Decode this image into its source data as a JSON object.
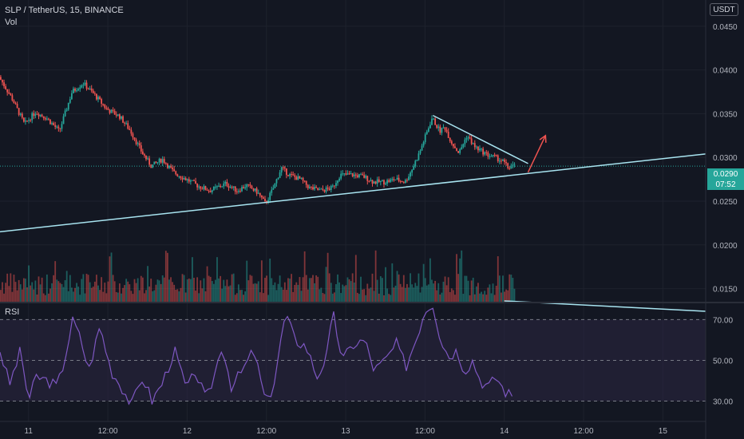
{
  "header": {
    "symbol_line": "SLP / TetherUS, 15, BINANCE",
    "vol_label": "Vol",
    "currency_button": "USDT",
    "rsi_label": "RSI"
  },
  "price_tag": {
    "price": "0.0290",
    "countdown": "07:52"
  },
  "colors": {
    "background": "#131722",
    "up": "#26a69a",
    "down": "#ef5350",
    "trendline": "#a8e4f0",
    "arrow": "#ef5350",
    "rsi_line": "#7e57c2",
    "rsi_band": "#2a2440"
  },
  "chart_data": [
    {
      "type": "candlestick",
      "title": "SLP / TetherUS, 15, BINANCE",
      "x_ticks": [
        "11",
        "12:00",
        "12",
        "12:00",
        "13",
        "12:00",
        "14",
        "12:00",
        "15"
      ],
      "y_ticks": [
        "0.0450",
        "0.0400",
        "0.0350",
        "0.0300",
        "0.0250",
        "0.0200",
        "0.0150"
      ],
      "ylim": [
        0.0135,
        0.048
      ],
      "xlim": [
        10.82,
        15.27
      ],
      "last_price": 0.029,
      "price_path": [
        [
          10.82,
          0.0392
        ],
        [
          10.9,
          0.0368
        ],
        [
          10.98,
          0.0338
        ],
        [
          11.05,
          0.0352
        ],
        [
          11.12,
          0.0345
        ],
        [
          11.2,
          0.033
        ],
        [
          11.28,
          0.0375
        ],
        [
          11.35,
          0.0385
        ],
        [
          11.42,
          0.0372
        ],
        [
          11.5,
          0.0355
        ],
        [
          11.58,
          0.0347
        ],
        [
          11.65,
          0.033
        ],
        [
          11.72,
          0.0306
        ],
        [
          11.78,
          0.029
        ],
        [
          11.85,
          0.0298
        ],
        [
          11.92,
          0.0283
        ],
        [
          12.0,
          0.0275
        ],
        [
          12.08,
          0.0267
        ],
        [
          12.15,
          0.0262
        ],
        [
          12.25,
          0.027
        ],
        [
          12.32,
          0.0262
        ],
        [
          12.38,
          0.0268
        ],
        [
          12.45,
          0.026
        ],
        [
          12.5,
          0.0247
        ],
        [
          12.55,
          0.0265
        ],
        [
          12.6,
          0.0288
        ],
        [
          12.65,
          0.028
        ],
        [
          12.72,
          0.0275
        ],
        [
          12.78,
          0.0265
        ],
        [
          12.85,
          0.0262
        ],
        [
          12.92,
          0.0265
        ],
        [
          12.97,
          0.028
        ],
        [
          13.05,
          0.028
        ],
        [
          13.12,
          0.0278
        ],
        [
          13.18,
          0.0272
        ],
        [
          13.25,
          0.0272
        ],
        [
          13.32,
          0.0275
        ],
        [
          13.38,
          0.0272
        ],
        [
          13.42,
          0.0285
        ],
        [
          13.47,
          0.0305
        ],
        [
          13.52,
          0.033
        ],
        [
          13.55,
          0.0345
        ],
        [
          13.6,
          0.033
        ],
        [
          13.63,
          0.0335
        ],
        [
          13.67,
          0.0318
        ],
        [
          13.72,
          0.0305
        ],
        [
          13.77,
          0.0325
        ],
        [
          13.82,
          0.0312
        ],
        [
          13.9,
          0.0303
        ],
        [
          13.95,
          0.03
        ],
        [
          14.0,
          0.0295
        ],
        [
          14.03,
          0.0288
        ],
        [
          14.06,
          0.029
        ]
      ],
      "trendlines": [
        {
          "name": "ascending-support",
          "points": [
            [
              10.82,
              0.0215
            ],
            [
              15.27,
              0.0304
            ]
          ]
        },
        {
          "name": "descending-resistance",
          "points": [
            [
              13.55,
              0.0348
            ],
            [
              14.15,
              0.0293
            ]
          ]
        }
      ],
      "arrow": {
        "from": [
          14.15,
          0.0283
        ],
        "to": [
          14.26,
          0.0325
        ]
      },
      "volume": {
        "label": "Vol",
        "max_relative": 1.0
      }
    },
    {
      "type": "line",
      "title": "RSI",
      "y_ticks": [
        "70.00",
        "50.00",
        "30.00"
      ],
      "ylim": [
        20,
        78
      ],
      "band": [
        30,
        70
      ],
      "values": [
        [
          10.82,
          55
        ],
        [
          10.88,
          38
        ],
        [
          10.95,
          55
        ],
        [
          11.0,
          30
        ],
        [
          11.05,
          42
        ],
        [
          11.12,
          40
        ],
        [
          11.18,
          37
        ],
        [
          11.22,
          48
        ],
        [
          11.28,
          70
        ],
        [
          11.33,
          60
        ],
        [
          11.38,
          45
        ],
        [
          11.45,
          67
        ],
        [
          11.52,
          45
        ],
        [
          11.58,
          38
        ],
        [
          11.65,
          28
        ],
        [
          11.72,
          42
        ],
        [
          11.78,
          30
        ],
        [
          11.85,
          40
        ],
        [
          11.92,
          55
        ],
        [
          12.0,
          35
        ],
        [
          12.05,
          45
        ],
        [
          12.12,
          30
        ],
        [
          12.18,
          45
        ],
        [
          12.22,
          58
        ],
        [
          12.28,
          37
        ],
        [
          12.35,
          45
        ],
        [
          12.42,
          55
        ],
        [
          12.5,
          28
        ],
        [
          12.55,
          40
        ],
        [
          12.62,
          73
        ],
        [
          12.68,
          60
        ],
        [
          12.75,
          57
        ],
        [
          12.82,
          42
        ],
        [
          12.88,
          52
        ],
        [
          12.92,
          73
        ],
        [
          12.98,
          50
        ],
        [
          13.05,
          58
        ],
        [
          13.12,
          60
        ],
        [
          13.18,
          45
        ],
        [
          13.25,
          50
        ],
        [
          13.32,
          58
        ],
        [
          13.38,
          47
        ],
        [
          13.45,
          62
        ],
        [
          13.5,
          75
        ],
        [
          13.55,
          78
        ],
        [
          13.6,
          60
        ],
        [
          13.65,
          52
        ],
        [
          13.7,
          55
        ],
        [
          13.75,
          45
        ],
        [
          13.8,
          50
        ],
        [
          13.85,
          40
        ],
        [
          13.9,
          37
        ],
        [
          13.95,
          42
        ],
        [
          14.0,
          35
        ],
        [
          14.06,
          32
        ]
      ]
    }
  ]
}
